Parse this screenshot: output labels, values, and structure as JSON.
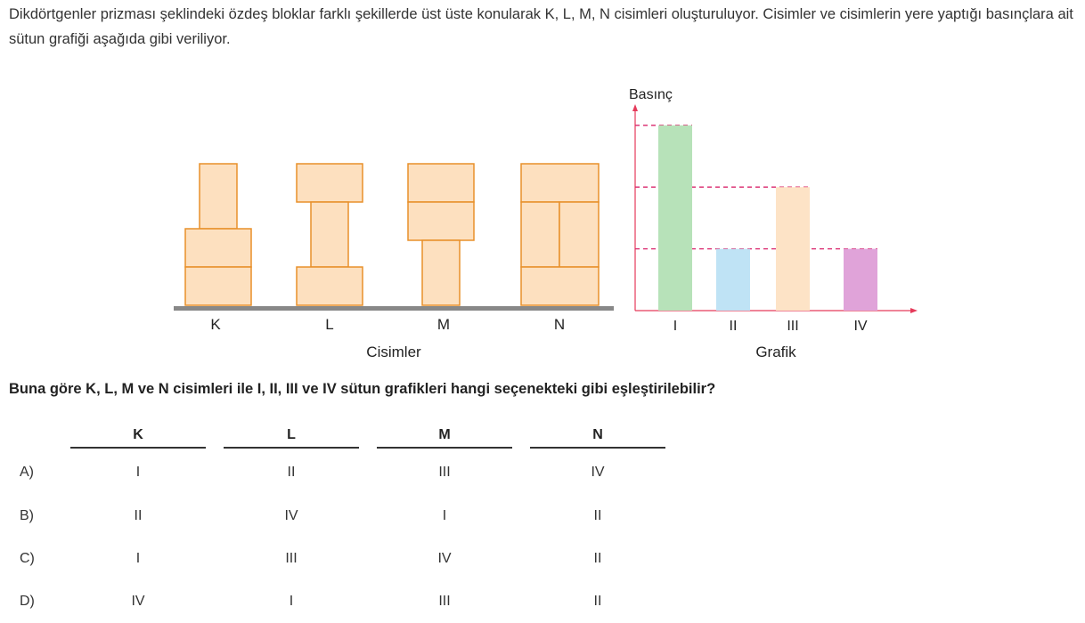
{
  "intro_text": "Dikdörtgenler prizması şeklindeki özdeş bloklar farklı şekillerde üst üste konularak K, L, M, N cisimleri oluşturuluyor. Cisimler ve cisimlerin yere yaptığı basınçlara ait sütun grafiği aşağıda gibi veriliyor.",
  "objects": {
    "labels": [
      "K",
      "L",
      "M",
      "N"
    ],
    "caption": "Cisimler"
  },
  "chart_data": {
    "type": "bar",
    "ylabel": "Basınç",
    "xlabel": "Grafik",
    "categories": [
      "I",
      "II",
      "III",
      "IV"
    ],
    "values": [
      3,
      1,
      2,
      1
    ],
    "colors": [
      "#b7e2b9",
      "#bfe3f5",
      "#fde3c6",
      "#e0a3d9"
    ],
    "ylim": [
      0,
      3.3
    ],
    "guide_lines": [
      1,
      2,
      3
    ],
    "grid": false,
    "axis_color": "#e53a5a"
  },
  "question": "Buna göre K, L, M ve N cisimleri ile I, II, III ve IV sütun grafikleri hangi seçenekteki gibi eşleştirilebilir?",
  "answers": {
    "headers": [
      "K",
      "L",
      "M",
      "N"
    ],
    "options": [
      {
        "letter": "A)",
        "values": [
          "I",
          "II",
          "III",
          "IV"
        ]
      },
      {
        "letter": "B)",
        "values": [
          "II",
          "IV",
          "I",
          "II"
        ]
      },
      {
        "letter": "C)",
        "values": [
          "I",
          "III",
          "IV",
          "II"
        ]
      },
      {
        "letter": "D)",
        "values": [
          "IV",
          "I",
          "III",
          "II"
        ]
      }
    ]
  }
}
